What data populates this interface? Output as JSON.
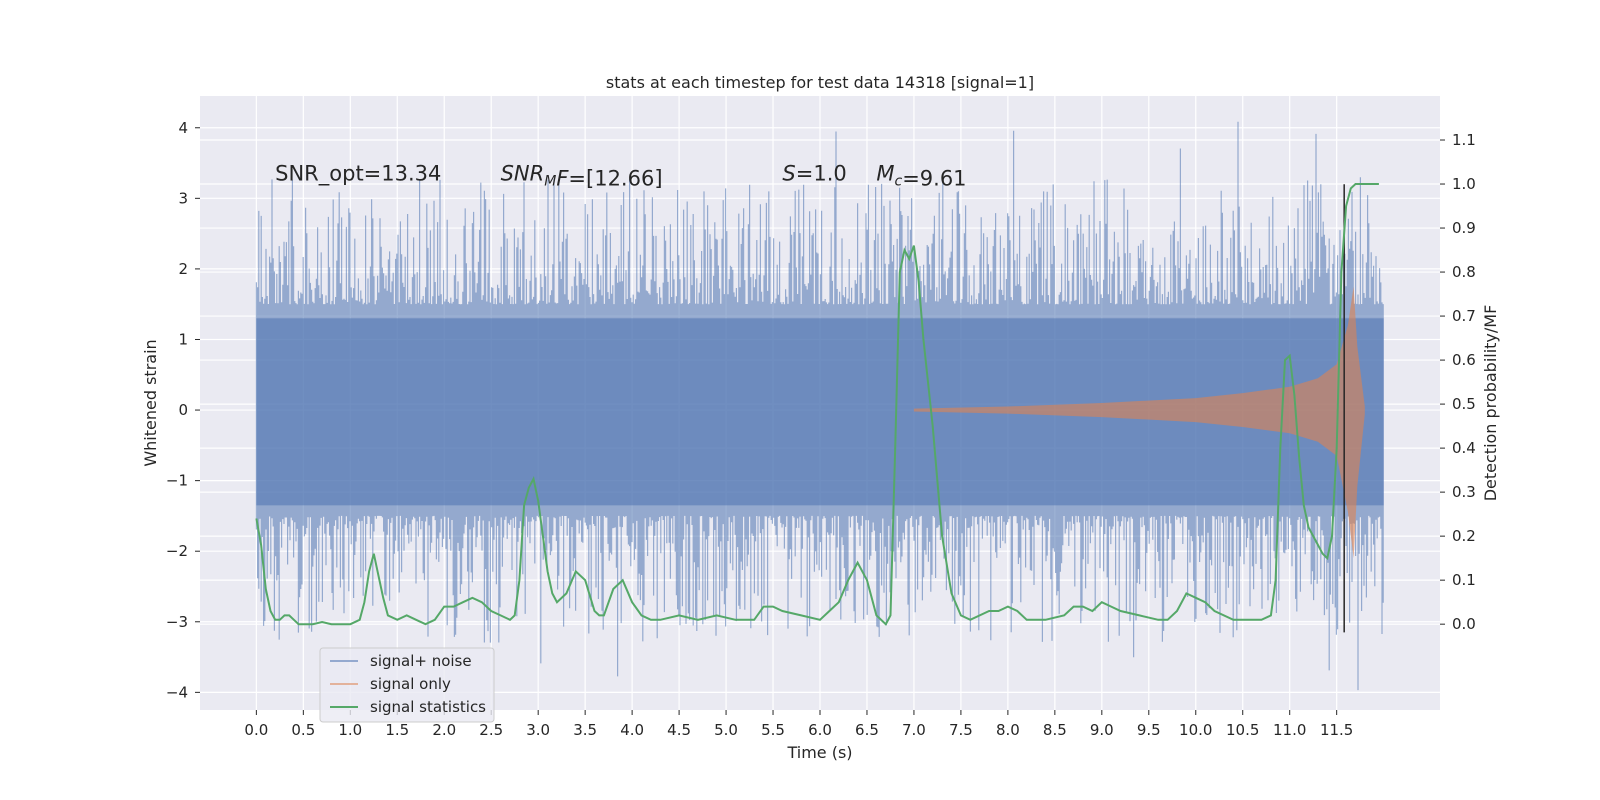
{
  "chart_data": {
    "type": "line",
    "title": "stats at each timestep for test data 14318 [signal=1]",
    "xlabel": "Time (s)",
    "ylabel_left": "Whitened strain",
    "ylabel_right": "Detection probability/MF",
    "xlim": [
      -0.6,
      12.6
    ],
    "ylim_left": [
      -4.25,
      4.45
    ],
    "ylim_right": [
      -0.195,
      1.2
    ],
    "x_ticks": [
      0.0,
      0.5,
      1.0,
      1.5,
      2.0,
      2.5,
      3.0,
      3.5,
      4.0,
      4.5,
      5.0,
      5.5,
      6.0,
      6.5,
      7.0,
      7.5,
      8.0,
      8.5,
      9.0,
      9.5,
      10.0,
      10.5,
      11.0,
      11.5
    ],
    "x_tick_labels": [
      "0.0",
      "0.5",
      "1.0",
      "1.5",
      "2.0",
      "2.5",
      "3.0",
      "3.5",
      "4.0",
      "4.5",
      "5.0",
      "5.5",
      "6.0",
      "6.5",
      "7.0",
      "7.5",
      "8.0",
      "8.5",
      "9.0",
      "9.5",
      "10.0",
      "10.5",
      "11.0",
      "11.5"
    ],
    "y_left_ticks": [
      -4,
      -3,
      -2,
      -1,
      0,
      1,
      2,
      3,
      4
    ],
    "y_left_tick_labels": [
      "−4",
      "−3",
      "−2",
      "−1",
      "0",
      "1",
      "2",
      "3",
      "4"
    ],
    "y_right_ticks": [
      0.0,
      0.1,
      0.2,
      0.3,
      0.4,
      0.5,
      0.6,
      0.7,
      0.8,
      0.9,
      1.0,
      1.1
    ],
    "y_right_tick_labels": [
      "0.0",
      "0.1",
      "0.2",
      "0.3",
      "0.4",
      "0.5",
      "0.6",
      "0.7",
      "0.8",
      "0.9",
      "1.0",
      "1.1"
    ],
    "grid": true,
    "legend_placement": "lower-left",
    "series": [
      {
        "name": "signal+ noise",
        "color": "#4c72b0",
        "axis": "left",
        "kind": "noise-band",
        "x_range": [
          0.0,
          12.0
        ],
        "core_envelope": [
          -1.35,
          1.3
        ],
        "peak_range": [
          -4.05,
          4.1
        ]
      },
      {
        "name": "signal only",
        "color": "#dd8452",
        "axis": "left",
        "kind": "chirp",
        "x_range": [
          7.0,
          12.0
        ],
        "envelope": [
          [
            7.0,
            0.02
          ],
          [
            8.0,
            0.05
          ],
          [
            9.0,
            0.1
          ],
          [
            10.0,
            0.17
          ],
          [
            10.5,
            0.24
          ],
          [
            11.0,
            0.33
          ],
          [
            11.3,
            0.45
          ],
          [
            11.5,
            0.65
          ],
          [
            11.62,
            1.2
          ],
          [
            11.68,
            1.75
          ],
          [
            11.72,
            0.9
          ],
          [
            11.8,
            0.05
          ]
        ]
      },
      {
        "name": "signal statistics",
        "color": "#55a868",
        "axis": "right",
        "kind": "line",
        "x": [
          0.0,
          0.05,
          0.1,
          0.15,
          0.2,
          0.25,
          0.3,
          0.35,
          0.4,
          0.45,
          0.5,
          0.6,
          0.7,
          0.8,
          0.9,
          1.0,
          1.1,
          1.15,
          1.2,
          1.25,
          1.3,
          1.35,
          1.4,
          1.5,
          1.6,
          1.7,
          1.8,
          1.9,
          2.0,
          2.1,
          2.2,
          2.3,
          2.4,
          2.5,
          2.6,
          2.7,
          2.75,
          2.8,
          2.85,
          2.9,
          2.95,
          3.0,
          3.05,
          3.1,
          3.15,
          3.2,
          3.3,
          3.4,
          3.5,
          3.6,
          3.65,
          3.7,
          3.8,
          3.9,
          4.0,
          4.1,
          4.2,
          4.3,
          4.5,
          4.7,
          4.9,
          5.1,
          5.3,
          5.4,
          5.5,
          5.6,
          5.8,
          6.0,
          6.1,
          6.2,
          6.3,
          6.4,
          6.5,
          6.6,
          6.7,
          6.75,
          6.8,
          6.85,
          6.9,
          6.95,
          7.0,
          7.05,
          7.1,
          7.2,
          7.3,
          7.4,
          7.5,
          7.6,
          7.8,
          7.9,
          8.0,
          8.1,
          8.2,
          8.4,
          8.6,
          8.7,
          8.8,
          8.9,
          9.0,
          9.1,
          9.2,
          9.4,
          9.6,
          9.7,
          9.8,
          9.9,
          10.0,
          10.1,
          10.2,
          10.4,
          10.6,
          10.7,
          10.8,
          10.85,
          10.9,
          10.95,
          11.0,
          11.05,
          11.1,
          11.15,
          11.2,
          11.3,
          11.35,
          11.4,
          11.45,
          11.5,
          11.55,
          11.6,
          11.65,
          11.7,
          11.75,
          11.8,
          11.9,
          11.95
        ],
        "y": [
          0.24,
          0.18,
          0.08,
          0.03,
          0.01,
          0.01,
          0.02,
          0.02,
          0.01,
          0.0,
          0.0,
          0.0,
          0.005,
          0.0,
          0.0,
          0.0,
          0.01,
          0.05,
          0.12,
          0.16,
          0.11,
          0.06,
          0.02,
          0.01,
          0.02,
          0.01,
          0.0,
          0.01,
          0.04,
          0.04,
          0.05,
          0.06,
          0.05,
          0.03,
          0.02,
          0.01,
          0.02,
          0.1,
          0.27,
          0.31,
          0.33,
          0.28,
          0.2,
          0.12,
          0.07,
          0.05,
          0.07,
          0.12,
          0.1,
          0.03,
          0.02,
          0.02,
          0.08,
          0.1,
          0.05,
          0.02,
          0.01,
          0.01,
          0.02,
          0.01,
          0.02,
          0.01,
          0.01,
          0.04,
          0.04,
          0.03,
          0.02,
          0.01,
          0.03,
          0.05,
          0.1,
          0.14,
          0.1,
          0.02,
          0.0,
          0.02,
          0.4,
          0.8,
          0.85,
          0.83,
          0.86,
          0.78,
          0.65,
          0.45,
          0.2,
          0.07,
          0.02,
          0.01,
          0.03,
          0.03,
          0.04,
          0.03,
          0.01,
          0.01,
          0.02,
          0.04,
          0.04,
          0.03,
          0.05,
          0.04,
          0.03,
          0.02,
          0.01,
          0.01,
          0.03,
          0.07,
          0.06,
          0.05,
          0.03,
          0.01,
          0.01,
          0.01,
          0.02,
          0.1,
          0.4,
          0.6,
          0.61,
          0.52,
          0.38,
          0.27,
          0.22,
          0.18,
          0.16,
          0.15,
          0.2,
          0.4,
          0.8,
          0.95,
          0.99,
          1.0,
          1.0,
          1.0,
          1.0,
          1.0
        ]
      }
    ],
    "annotations": [
      {
        "x": 0.2,
        "y": 3.25,
        "parts": [
          {
            "text": "SNR_opt=13.34",
            "italic": false
          }
        ]
      },
      {
        "x": 2.6,
        "y": 3.25,
        "parts": [
          {
            "text": "SNR",
            "italic": true
          },
          {
            "text": "M",
            "italic": true,
            "sub": true
          },
          {
            "text": "F",
            "italic": true
          },
          {
            "text": "=[12.66]",
            "italic": false
          }
        ]
      },
      {
        "x": 5.6,
        "y": 3.25,
        "parts": [
          {
            "text": "S",
            "italic": true
          },
          {
            "text": "=1.0",
            "italic": false
          }
        ]
      },
      {
        "x": 6.6,
        "y": 3.25,
        "parts": [
          {
            "text": "M",
            "italic": true
          },
          {
            "text": "c",
            "italic": true,
            "sub": true
          },
          {
            "text": "=9.61",
            "italic": false
          }
        ]
      }
    ],
    "vertical_marker": {
      "x": 11.58,
      "y_range": [
        -3.15,
        3.2
      ],
      "color": "#262626"
    }
  }
}
